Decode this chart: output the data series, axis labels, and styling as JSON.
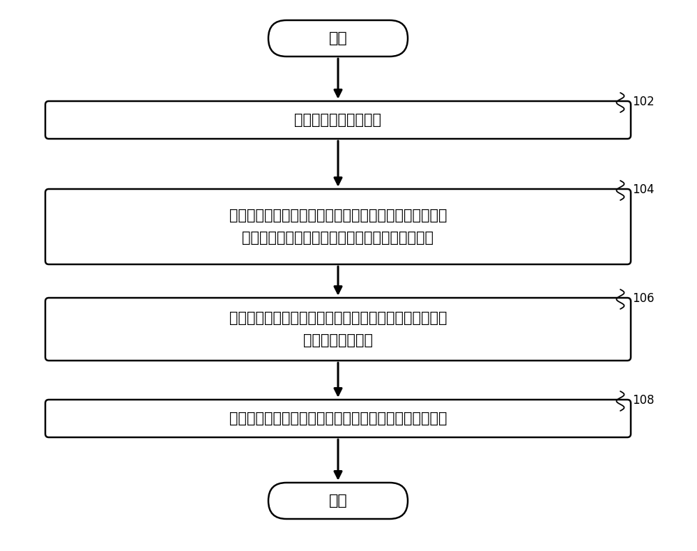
{
  "bg_color": "#ffffff",
  "line_color": "#000000",
  "fill_color": "#ffffff",
  "text_color": "#000000",
  "start_end_label": [
    "开始",
    "结束"
  ],
  "box_labels": [
    "获取低分辨率人脸图片",
    "根据所述低分辨率人脸图片的光照分布和细节分布，调整\n训练集中的每幅训练集图片的光照分布和细节分布",
    "根据调整后的所述每幅训练集图片，通过邻域嵌入方法建\n立高分辨率图像块",
    "将所述高分辨率图像块进行合并，得到高分辨率人脸图片"
  ],
  "step_labels": [
    "102",
    "104",
    "106",
    "108"
  ],
  "font_size_box": 15,
  "font_size_start_end": 16,
  "font_size_step": 12
}
